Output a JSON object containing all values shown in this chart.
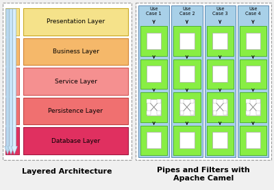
{
  "bg_color": "#f0f0f0",
  "border_color": "#999999",
  "left_title": "Layered Architecture",
  "right_title": "Pipes and Filters with\nApache Camel",
  "title_fontsize": 8,
  "layers": [
    {
      "label": "Presentation Layer",
      "face": "#f5e28a",
      "edge": "#c8a820"
    },
    {
      "label": "Business Layer",
      "face": "#f5b86a",
      "edge": "#d08030"
    },
    {
      "label": "Service Layer",
      "face": "#f59090",
      "edge": "#d05050"
    },
    {
      "label": "Persistence Layer",
      "face": "#f07070",
      "edge": "#c04040"
    },
    {
      "label": "Database Layer",
      "face": "#e03060",
      "edge": "#a01840"
    }
  ],
  "tab_colors": [
    "#e8d870",
    "#e8a848",
    "#e06060",
    "#d84848",
    "#c02050"
  ],
  "arrow_colors": [
    "#b8d8f0",
    "#c8e4f8",
    "#d8eeff"
  ],
  "use_cases": [
    "Use\nCase 1",
    "Use\nCase 2",
    "Use\nCase 3",
    "Use\nCase 4"
  ],
  "col_bg": "#a8d0e8",
  "col_edge": "#5888b0",
  "box_bg": "#88ee44",
  "box_edge": "#44aa22",
  "inner_bg": "#ffffff",
  "inner_edge": "#aaaaaa",
  "arrow_col": "#111111"
}
